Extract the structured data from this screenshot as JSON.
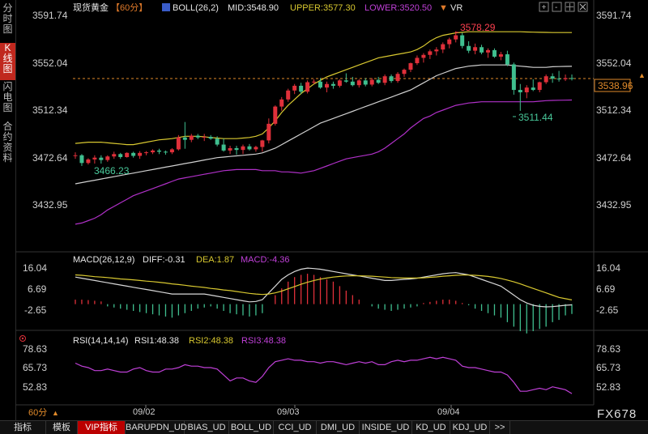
{
  "side_tabs": [
    {
      "label": "分时图",
      "active": false
    },
    {
      "label": "K线图",
      "active": true
    },
    {
      "label": "闪电图",
      "active": false
    },
    {
      "label": "合约资料",
      "active": false
    }
  ],
  "header": {
    "instrument": "现货黄金",
    "period": "【60分】",
    "boll": "BOLL(26,2)",
    "mid": "MID:3548.90",
    "upper": "UPPER:3577.30",
    "lower": "LOWER:3520.50",
    "vr": "VR"
  },
  "toolbar_icons": [
    "zoom-in-icon",
    "zoom-out-icon",
    "grid-icon",
    "close-icon"
  ],
  "price_axis": {
    "labels": [
      "3591.74",
      "3552.04",
      "3512.34",
      "3472.64",
      "3432.95"
    ],
    "current_price": "3538.96",
    "high_label": "3578.29",
    "low_label": "3511.44",
    "low2_label": "3466.23"
  },
  "macd": {
    "title": "MACD(26,12,9)",
    "diff": "DIFF:-0.31",
    "dea": "DEA:1.87",
    "macd": "MACD:-4.36",
    "axis": [
      "16.04",
      "6.69",
      "-2.65"
    ]
  },
  "rsi": {
    "title": "RSI(14,14,14)",
    "rsi1": "RSI1:48.38",
    "rsi2": "RSI2:48.38",
    "rsi3": "RSI3:48.38",
    "axis": [
      "78.63",
      "65.73",
      "52.83"
    ]
  },
  "dates": [
    "09/02",
    "09/03",
    "09/04"
  ],
  "period_selector": "60分",
  "watermark": "FX678",
  "bottom_tabs": [
    {
      "label": "指标",
      "active": false
    },
    {
      "label": "模板",
      "active": false
    },
    {
      "label": "VIP指标",
      "active": true
    },
    {
      "label": "BARUPDN_UD",
      "active": false
    },
    {
      "label": "BIAS_UD",
      "active": false
    },
    {
      "label": "BOLL_UD",
      "active": false
    },
    {
      "label": "CCI_UD",
      "active": false
    },
    {
      "label": "DMI_UD",
      "active": false
    },
    {
      "label": "INSIDE_UD",
      "active": false
    },
    {
      "label": "KD_UD",
      "active": false
    },
    {
      "label": "KDJ_UD",
      "active": false
    },
    {
      "label": ">>",
      "active": false
    }
  ],
  "colors": {
    "up": "#e0303a",
    "down": "#3fbf8f",
    "mid": "#d0d0d0",
    "upper": "#d8c830",
    "lower": "#b030c8",
    "diff": "#d8d8d8",
    "dea": "#d8c830",
    "rsi": "#c040d8",
    "price_label": "#e08a2a",
    "high": "#ff4050",
    "low": "#48c89a"
  },
  "chart_data": {
    "type": "candlestick",
    "ylim": [
      3420,
      3600
    ],
    "candles": [
      [
        3474.0,
        3476.5,
        3471.0,
        3474.0
      ],
      [
        3474.0,
        3475.0,
        3465.0,
        3467.5
      ],
      [
        3467.5,
        3471.5,
        3466.2,
        3470.5
      ],
      [
        3470.5,
        3474.0,
        3467.0,
        3472.0
      ],
      [
        3472.0,
        3474.0,
        3467.0,
        3470.0
      ],
      [
        3470.0,
        3474.0,
        3468.5,
        3473.0
      ],
      [
        3473.0,
        3477.0,
        3471.0,
        3475.0
      ],
      [
        3475.0,
        3476.0,
        3471.0,
        3472.5
      ],
      [
        3472.5,
        3476.5,
        3472.0,
        3476.0
      ],
      [
        3476.0,
        3477.0,
        3472.0,
        3473.5
      ],
      [
        3473.5,
        3477.5,
        3471.0,
        3476.0
      ],
      [
        3476.0,
        3477.5,
        3474.0,
        3476.5
      ],
      [
        3476.5,
        3479.0,
        3475.0,
        3478.0
      ],
      [
        3478.0,
        3479.5,
        3475.0,
        3477.0
      ],
      [
        3477.0,
        3478.0,
        3474.5,
        3476.5
      ],
      [
        3476.5,
        3480.0,
        3475.0,
        3479.0
      ],
      [
        3479.0,
        3491.0,
        3478.0,
        3489.0
      ],
      [
        3489.0,
        3502.0,
        3479.5,
        3487.0
      ],
      [
        3487.0,
        3492.0,
        3485.0,
        3490.5
      ],
      [
        3490.5,
        3492.0,
        3487.5,
        3489.0
      ],
      [
        3489.0,
        3492.0,
        3486.0,
        3489.5
      ],
      [
        3489.5,
        3491.0,
        3487.0,
        3488.0
      ],
      [
        3488.0,
        3490.0,
        3481.5,
        3483.0
      ],
      [
        3483.0,
        3488.0,
        3477.0,
        3478.0
      ],
      [
        3478.0,
        3482.0,
        3475.0,
        3480.0
      ],
      [
        3480.0,
        3482.0,
        3474.5,
        3478.5
      ],
      [
        3478.5,
        3483.0,
        3475.0,
        3481.5
      ],
      [
        3481.5,
        3483.5,
        3478.0,
        3479.0
      ],
      [
        3479.0,
        3482.0,
        3477.0,
        3481.0
      ],
      [
        3481.0,
        3487.0,
        3477.0,
        3486.5
      ],
      [
        3486.5,
        3505.0,
        3484.0,
        3500.5
      ],
      [
        3500.5,
        3516.0,
        3499.0,
        3515.0
      ],
      [
        3515.0,
        3523.0,
        3511.5,
        3521.0
      ],
      [
        3521.0,
        3530.0,
        3519.0,
        3528.5
      ],
      [
        3528.5,
        3534.0,
        3525.5,
        3532.5
      ],
      [
        3532.5,
        3535.0,
        3525.5,
        3527.5
      ],
      [
        3527.5,
        3537.0,
        3526.0,
        3535.5
      ],
      [
        3535.5,
        3538.0,
        3534.0,
        3536.0
      ],
      [
        3536.0,
        3539.0,
        3530.0,
        3531.0
      ],
      [
        3531.0,
        3536.0,
        3527.0,
        3534.0
      ],
      [
        3534.0,
        3536.0,
        3530.0,
        3532.5
      ],
      [
        3532.5,
        3538.0,
        3531.0,
        3537.0
      ],
      [
        3537.0,
        3543.0,
        3535.0,
        3536.0
      ],
      [
        3536.0,
        3540.0,
        3532.0,
        3533.0
      ],
      [
        3533.0,
        3538.0,
        3531.0,
        3537.0
      ],
      [
        3537.0,
        3539.0,
        3532.0,
        3533.5
      ],
      [
        3533.5,
        3539.0,
        3532.0,
        3537.5
      ],
      [
        3537.5,
        3540.0,
        3534.0,
        3535.0
      ],
      [
        3535.0,
        3542.0,
        3533.0,
        3540.5
      ],
      [
        3540.5,
        3542.0,
        3535.0,
        3536.5
      ],
      [
        3536.5,
        3544.0,
        3535.0,
        3542.5
      ],
      [
        3542.5,
        3547.0,
        3540.0,
        3546.0
      ],
      [
        3546.0,
        3552.0,
        3544.0,
        3551.5
      ],
      [
        3551.5,
        3558.0,
        3550.0,
        3556.0
      ],
      [
        3556.0,
        3560.0,
        3552.0,
        3558.5
      ],
      [
        3558.5,
        3563.0,
        3555.0,
        3561.5
      ],
      [
        3561.5,
        3565.0,
        3558.0,
        3563.0
      ],
      [
        3563.0,
        3569.0,
        3560.0,
        3567.5
      ],
      [
        3567.5,
        3573.0,
        3564.0,
        3571.5
      ],
      [
        3571.5,
        3578.3,
        3569.0,
        3575.0
      ],
      [
        3575.0,
        3577.0,
        3564.0,
        3566.0
      ],
      [
        3566.0,
        3570.0,
        3560.0,
        3562.0
      ],
      [
        3562.0,
        3568.0,
        3559.0,
        3565.0
      ],
      [
        3565.0,
        3567.0,
        3559.0,
        3560.5
      ],
      [
        3560.5,
        3564.0,
        3556.0,
        3562.5
      ],
      [
        3562.5,
        3564.0,
        3556.0,
        3557.0
      ],
      [
        3557.0,
        3561.0,
        3554.0,
        3559.0
      ],
      [
        3559.0,
        3562.0,
        3549.0,
        3550.5
      ],
      [
        3550.5,
        3552.0,
        3525.0,
        3529.0
      ],
      [
        3529.0,
        3534.0,
        3511.4,
        3527.0
      ],
      [
        3527.0,
        3533.0,
        3522.0,
        3531.0
      ],
      [
        3531.0,
        3538.0,
        3528.0,
        3529.0
      ],
      [
        3529.0,
        3536.0,
        3527.0,
        3535.5
      ],
      [
        3535.5,
        3542.0,
        3534.0,
        3540.5
      ],
      [
        3540.5,
        3543.0,
        3535.0,
        3538.5
      ],
      [
        3538.5,
        3545.0,
        3536.0,
        3538.0
      ],
      [
        3538.0,
        3542.0,
        3536.5,
        3539.0
      ],
      [
        3539.0,
        3542.0,
        3537.0,
        3538.96
      ]
    ],
    "boll_mid": [
      3450,
      3451,
      3452,
      3453,
      3454,
      3455,
      3456,
      3457,
      3458,
      3459,
      3460,
      3461,
      3462,
      3463,
      3464,
      3465,
      3466,
      3467,
      3468,
      3469,
      3470,
      3471,
      3472,
      3472.5,
      3473,
      3473.5,
      3474,
      3474.5,
      3475,
      3476,
      3478,
      3480,
      3483,
      3486,
      3489,
      3492,
      3495,
      3498,
      3501,
      3503,
      3505,
      3507,
      3509,
      3511,
      3513,
      3515,
      3517,
      3519,
      3521,
      3523,
      3525,
      3527,
      3529,
      3532,
      3535,
      3538,
      3541,
      3543,
      3545,
      3547,
      3548,
      3549,
      3549.5,
      3550,
      3550,
      3550,
      3550,
      3550,
      3549.5,
      3549,
      3548.5,
      3548,
      3548,
      3548,
      3548.5,
      3548.7,
      3548.8,
      3548.9
    ],
    "boll_upper": [
      3484,
      3484.5,
      3485,
      3485,
      3485,
      3484.5,
      3484,
      3483.5,
      3483,
      3483,
      3484,
      3485,
      3486,
      3487,
      3487.5,
      3488,
      3489,
      3490,
      3490,
      3490,
      3489.5,
      3489,
      3488.5,
      3488,
      3488,
      3488,
      3488.5,
      3489,
      3490,
      3492,
      3497,
      3503,
      3510,
      3516,
      3521,
      3526,
      3530,
      3534,
      3537,
      3540,
      3542,
      3544,
      3546,
      3548,
      3550,
      3552,
      3554,
      3556,
      3557,
      3558,
      3559,
      3560,
      3561,
      3563,
      3566,
      3570,
      3573,
      3575,
      3576,
      3577,
      3577.5,
      3578,
      3578,
      3578,
      3578,
      3578,
      3578,
      3578,
      3578,
      3578,
      3577.8,
      3577.6,
      3577.5,
      3577.4,
      3577.3,
      3577.3,
      3577.3,
      3577.3
    ],
    "boll_lower": [
      3416,
      3417,
      3419,
      3421,
      3424,
      3428,
      3431,
      3434,
      3437,
      3440,
      3442,
      3444,
      3446,
      3448,
      3450,
      3452,
      3454,
      3455,
      3456,
      3457,
      3458,
      3459,
      3460,
      3461,
      3461.5,
      3462,
      3462,
      3462,
      3462,
      3461,
      3461,
      3461,
      3460,
      3460,
      3459.5,
      3459,
      3460,
      3461,
      3463,
      3465,
      3467,
      3469,
      3471,
      3472,
      3473,
      3474,
      3475,
      3477,
      3480,
      3484,
      3488,
      3492,
      3497,
      3501,
      3505,
      3507,
      3510,
      3512,
      3514,
      3516,
      3517,
      3518,
      3518.5,
      3519,
      3519,
      3519,
      3519,
      3519,
      3519,
      3519,
      3519,
      3519,
      3519.5,
      3520,
      3520.2,
      3520.3,
      3520.4,
      3520.5
    ],
    "macd_hist": [
      2,
      2,
      1.8,
      1.5,
      1.2,
      -1,
      -1.5,
      -2,
      -2.5,
      -3,
      -3.5,
      -4,
      -4.5,
      -5,
      -5.5,
      -6,
      -5,
      -4,
      -3,
      -2,
      -1.5,
      -1,
      -2,
      -3,
      -4,
      -4.5,
      -5,
      -5.5,
      -5,
      -4,
      0,
      4,
      7,
      10,
      12,
      13,
      13.5,
      13,
      12,
      11,
      10,
      8,
      6,
      4,
      2,
      0,
      -1,
      -2,
      -2.5,
      -3,
      -2.5,
      -2,
      -1.5,
      -1,
      0.5,
      1,
      1.5,
      2,
      2,
      1.5,
      0.5,
      -0.5,
      -2,
      -3,
      -4,
      -5,
      -6,
      -8,
      -10,
      -12,
      -13,
      -12,
      -11,
      -10,
      -8,
      -7,
      -5,
      -4.36
    ],
    "macd_diff": [
      12,
      11.5,
      11,
      10.5,
      10,
      9.5,
      9,
      8.5,
      8,
      7.5,
      7,
      6.5,
      6,
      5.5,
      5,
      4.5,
      4.5,
      4.5,
      4.5,
      4.5,
      4.5,
      4,
      3.5,
      3,
      2.5,
      2,
      1.5,
      1,
      1.2,
      2,
      5,
      8,
      11,
      13,
      14.5,
      15.5,
      16,
      15.8,
      15.5,
      15,
      14.5,
      14,
      13.5,
      13,
      12.5,
      12,
      11.5,
      11,
      10.5,
      10.5,
      10.8,
      11,
      11.2,
      11.5,
      12,
      12.5,
      13,
      13.5,
      13.8,
      14,
      13.5,
      13,
      12,
      11,
      10,
      9,
      8,
      6,
      4,
      2,
      0.5,
      -0.5,
      -1,
      -1.2,
      -1.1,
      -0.8,
      -0.5,
      -0.31
    ],
    "macd_dea": [
      13,
      12.8,
      12.5,
      12.2,
      12,
      11.8,
      11.5,
      11.2,
      11,
      10.8,
      10.5,
      10.2,
      10,
      9.7,
      9.4,
      9,
      8.7,
      8.4,
      8,
      7.7,
      7.4,
      7,
      6.7,
      6.3,
      6,
      5.6,
      5.2,
      4.8,
      4.5,
      4.3,
      4.5,
      5,
      5.8,
      6.8,
      7.8,
      8.8,
      9.7,
      10.5,
      11.1,
      11.6,
      12,
      12.3,
      12.5,
      12.6,
      12.6,
      12.5,
      12.4,
      12.2,
      12,
      11.8,
      11.7,
      11.6,
      11.6,
      11.6,
      11.7,
      11.9,
      12.1,
      12.4,
      12.6,
      12.8,
      12.9,
      12.9,
      12.8,
      12.6,
      12.3,
      11.9,
      11.4,
      10.7,
      9.9,
      9,
      8,
      7,
      6,
      5,
      4,
      3,
      2.4,
      1.87
    ],
    "rsi_values": [
      69,
      67,
      66,
      64,
      64,
      65,
      64,
      63,
      63,
      65,
      66,
      64,
      63,
      63,
      65,
      65,
      66,
      68,
      67,
      67,
      66,
      66,
      65,
      61,
      57,
      59,
      59,
      57,
      56,
      60,
      66,
      70,
      71,
      72,
      71,
      71,
      70,
      70,
      69,
      70,
      70,
      69,
      68,
      69,
      70,
      69,
      70,
      68,
      68,
      70,
      71,
      70,
      71,
      71,
      72,
      73,
      72,
      73,
      72,
      71,
      67,
      66,
      66,
      65,
      64,
      63,
      63,
      61,
      56,
      50,
      50,
      51,
      52,
      51,
      53,
      52,
      51,
      48.38
    ]
  }
}
